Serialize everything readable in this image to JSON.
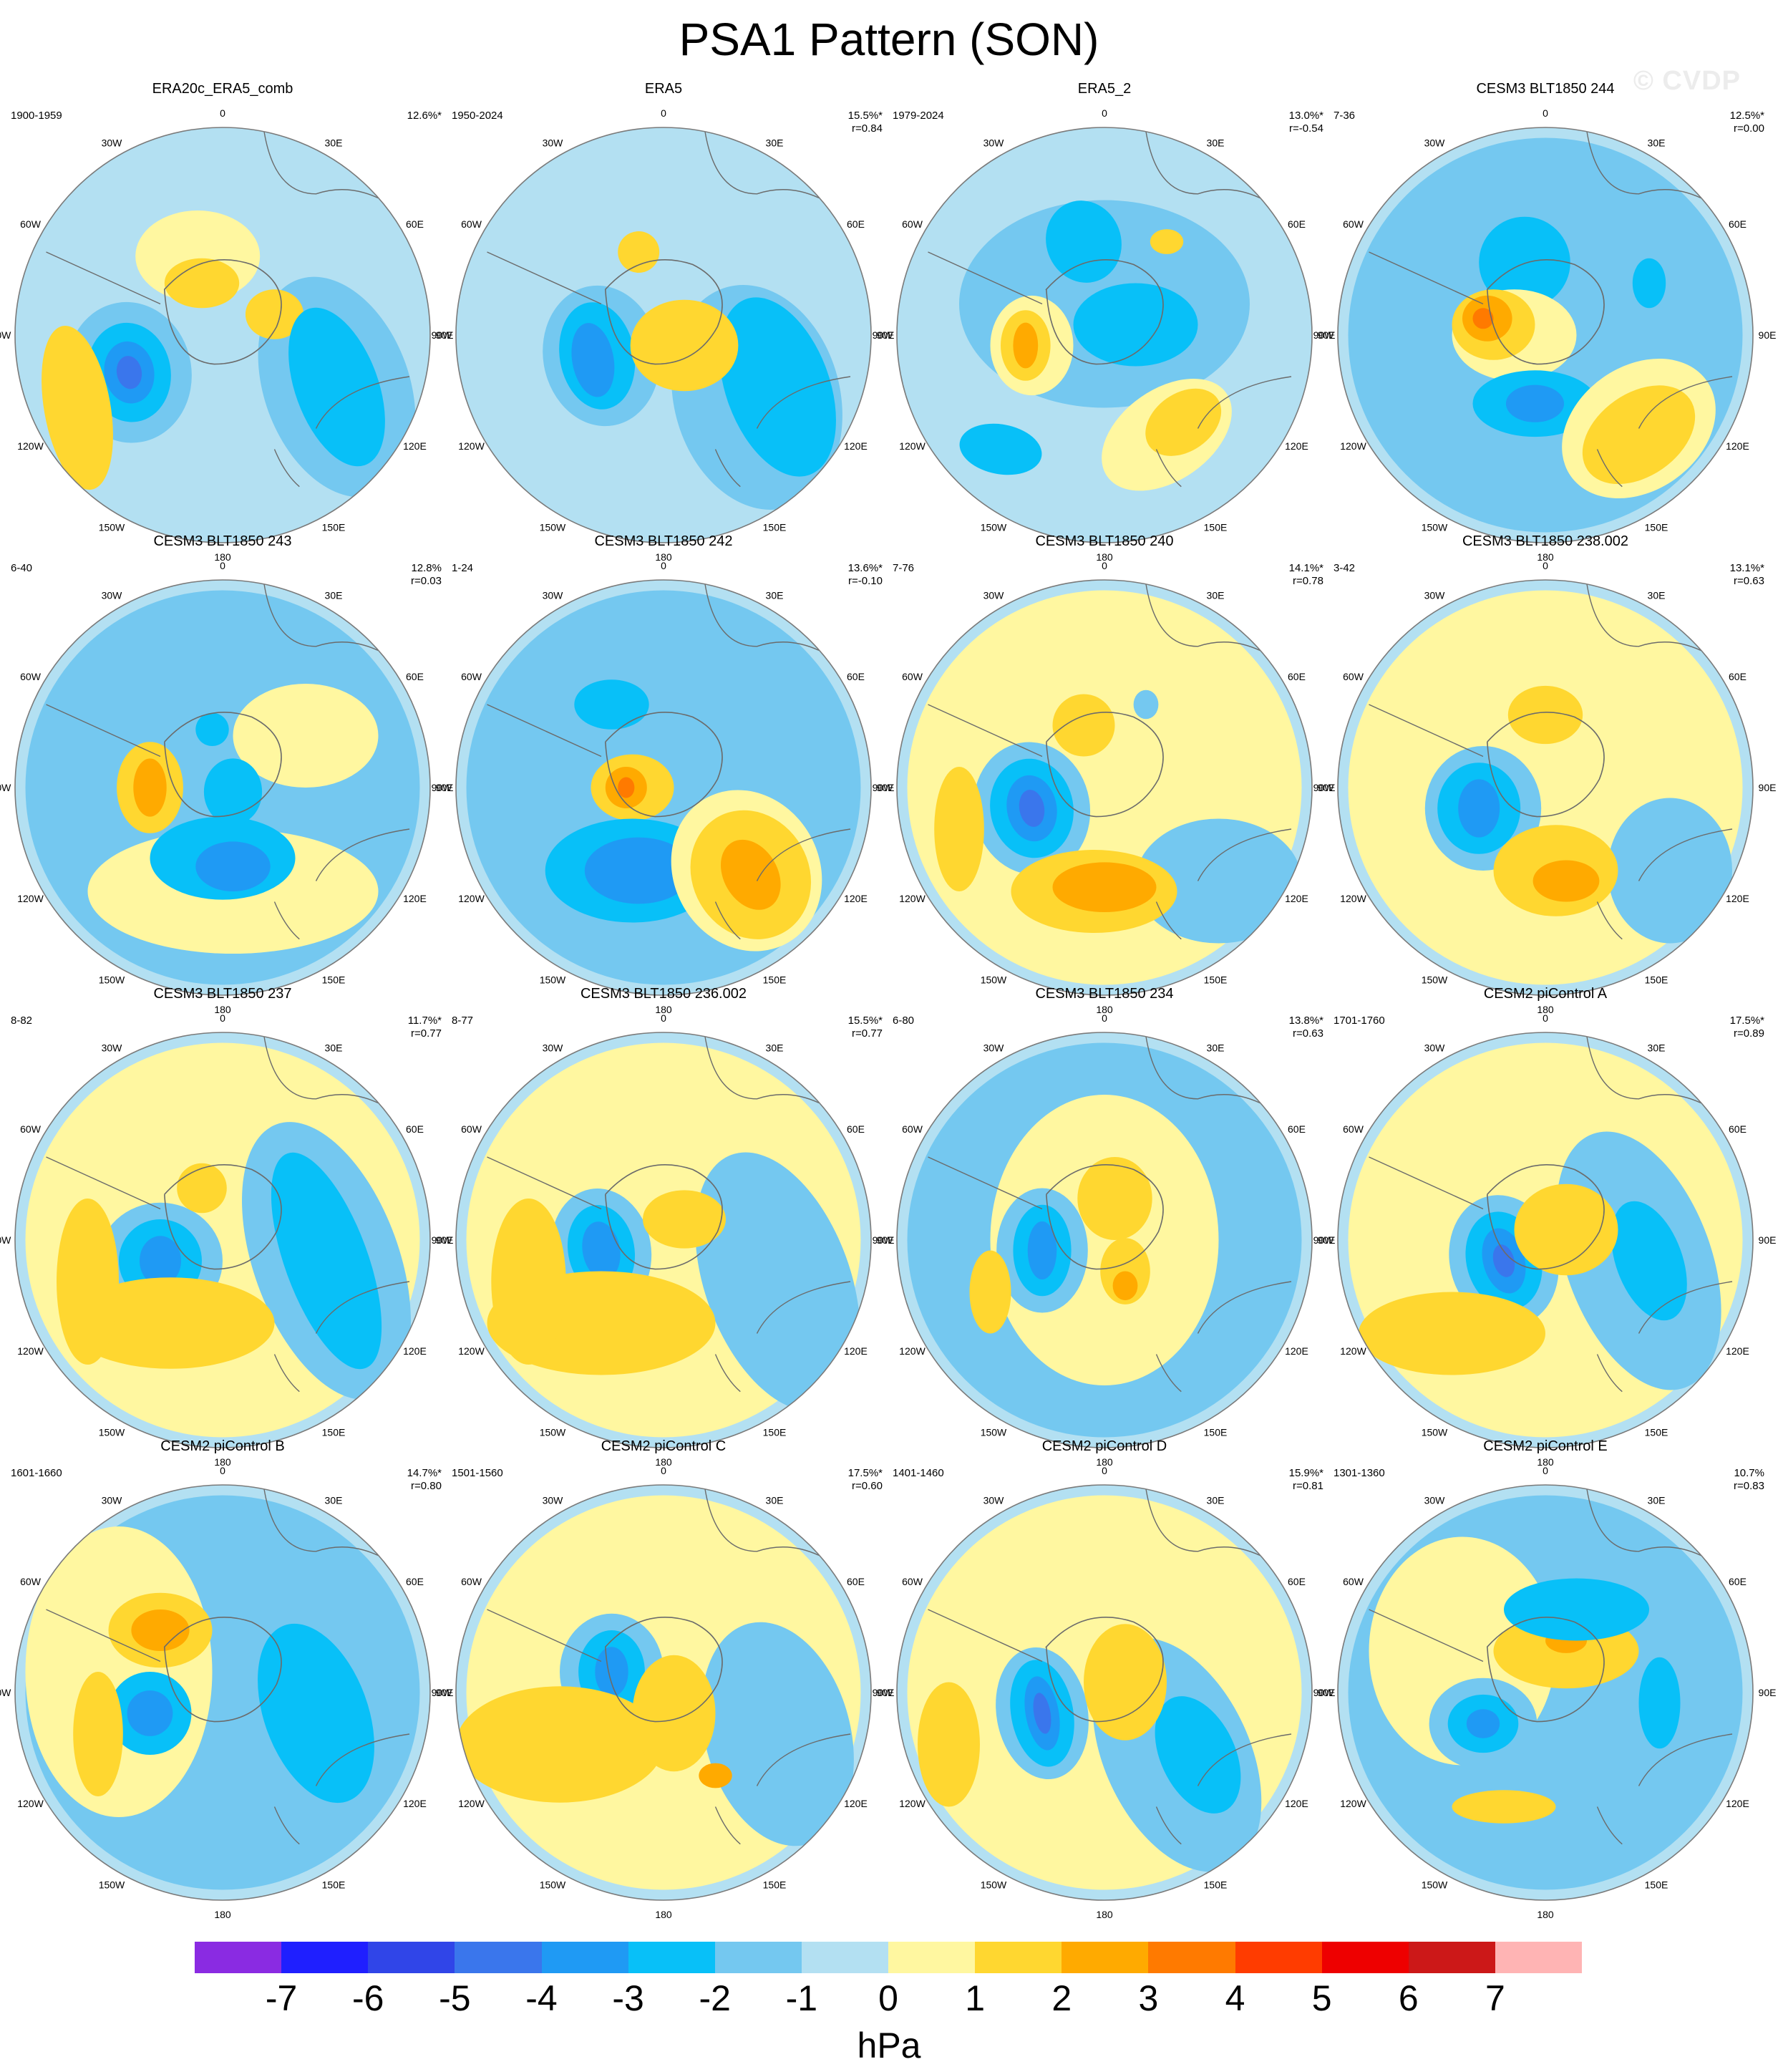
{
  "title": "PSA1 Pattern (SON)",
  "watermark": "© CVDP",
  "units": "hPa",
  "lon_labels": [
    "0",
    "30E",
    "60E",
    "90E",
    "120E",
    "150E",
    "180",
    "150W",
    "120W",
    "90W",
    "60W",
    "30W"
  ],
  "colors": {
    "ocean_neutral": "#b3e0f2",
    "land_neutral": "#fff7a0",
    "coast": "#6b6b6b",
    "rim": "#7a7a7a"
  },
  "colorbar": {
    "colors": [
      "#8a2be2",
      "#1f1fff",
      "#3045e8",
      "#3a76ec",
      "#1f9af4",
      "#08c0f8",
      "#74c8f0",
      "#b3e0f2",
      "#fff7a0",
      "#ffd730",
      "#ffaa00",
      "#ff7a00",
      "#ff3c00",
      "#ee0000",
      "#cc1818",
      "#ffb4b4"
    ],
    "ticks": [
      "-7",
      "-6",
      "-5",
      "-4",
      "-3",
      "-2",
      "-1",
      "0",
      "1",
      "2",
      "3",
      "4",
      "5",
      "6",
      "7"
    ]
  },
  "panels": [
    {
      "title": "ERA20c_ERA5_comb",
      "years": "1900-1959",
      "pct": "12.6%*",
      "r": ""
    },
    {
      "title": "ERA5",
      "years": "1950-2024",
      "pct": "15.5%*",
      "r": "r=0.84"
    },
    {
      "title": "ERA5_2",
      "years": "1979-2024",
      "pct": "13.0%*",
      "r": "r=-0.54"
    },
    {
      "title": "CESM3 BLT1850 244",
      "years": "7-36",
      "pct": "12.5%*",
      "r": "r=0.00"
    },
    {
      "title": "CESM3 BLT1850 243",
      "years": "6-40",
      "pct": "12.8%",
      "r": "r=0.03"
    },
    {
      "title": "CESM3 BLT1850 242",
      "years": "1-24",
      "pct": "13.6%*",
      "r": "r=-0.10"
    },
    {
      "title": "CESM3 BLT1850 240",
      "years": "7-76",
      "pct": "14.1%*",
      "r": "r=0.78"
    },
    {
      "title": "CESM3 BLT1850 238.002",
      "years": "3-42",
      "pct": "13.1%*",
      "r": "r=0.63"
    },
    {
      "title": "CESM3 BLT1850 237",
      "years": "8-82",
      "pct": "11.7%*",
      "r": "r=0.77"
    },
    {
      "title": "CESM3 BLT1850 236.002",
      "years": "8-77",
      "pct": "15.5%*",
      "r": "r=0.77"
    },
    {
      "title": "CESM3 BLT1850 234",
      "years": "6-80",
      "pct": "13.8%*",
      "r": "r=0.63"
    },
    {
      "title": "CESM2 piControl A",
      "years": "1701-1760",
      "pct": "17.5%*",
      "r": "r=0.89"
    },
    {
      "title": "CESM2 piControl B",
      "years": "1601-1660",
      "pct": "14.7%*",
      "r": "r=0.80"
    },
    {
      "title": "CESM2 piControl C",
      "years": "1501-1560",
      "pct": "17.5%*",
      "r": "r=0.60"
    },
    {
      "title": "CESM2 piControl D",
      "years": "1401-1460",
      "pct": "15.9%*",
      "r": "r=0.81"
    },
    {
      "title": "CESM2 piControl E",
      "years": "1301-1360",
      "pct": "10.7%",
      "r": "r=0.83"
    }
  ]
}
